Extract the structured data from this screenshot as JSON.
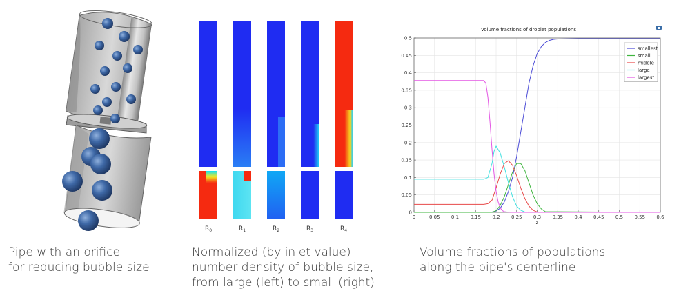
{
  "captions": {
    "pipe": [
      "Pipe with an orifice",
      "for reducing bubble size"
    ],
    "contour": [
      "Normalized (by inlet value)",
      "number density of bubble size,",
      "from large (left) to small (right)"
    ],
    "chart": [
      "Volume fractions of populations",
      "along the pipe's centerline"
    ]
  },
  "contour_labels": [
    {
      "base": "R",
      "sub": "0"
    },
    {
      "base": "R",
      "sub": "1"
    },
    {
      "base": "R",
      "sub": "2"
    },
    {
      "base": "R",
      "sub": "3"
    },
    {
      "base": "R",
      "sub": "4"
    }
  ],
  "colors": {
    "contour_blue": "#1f2cf2",
    "contour_red": "#f52a10",
    "contour_cyan": "#3fd8f0",
    "pipe_gray": "#b8b8b8",
    "bubble_blue": "#3e68a6"
  },
  "chart_data": {
    "type": "line",
    "title": "Volume fractions of droplet populations",
    "xlabel": "z",
    "ylabel": "",
    "xlim": [
      0,
      0.6
    ],
    "ylim": [
      0,
      0.5
    ],
    "xticks": [
      "0",
      "0.05",
      "0.1",
      "0.15",
      "0.2",
      "0.25",
      "0.3",
      "0.35",
      "0.4",
      "0.45",
      "0.5",
      "0.55",
      "0.6"
    ],
    "yticks": [
      "0",
      "0.05",
      "0.1",
      "0.15",
      "0.2",
      "0.25",
      "0.3",
      "0.35",
      "0.4",
      "0.45",
      "0.5"
    ],
    "grid": true,
    "legend_position": "top-right",
    "series": [
      {
        "name": "smallest",
        "color": "#4b4bd6",
        "x": [
          0,
          0.18,
          0.19,
          0.2,
          0.21,
          0.22,
          0.23,
          0.24,
          0.25,
          0.26,
          0.27,
          0.28,
          0.29,
          0.3,
          0.31,
          0.32,
          0.33,
          0.34,
          0.35,
          0.4,
          0.6
        ],
        "y": [
          0,
          0,
          0.001,
          0.004,
          0.012,
          0.03,
          0.06,
          0.1,
          0.16,
          0.23,
          0.3,
          0.37,
          0.42,
          0.455,
          0.475,
          0.487,
          0.493,
          0.496,
          0.497,
          0.498,
          0.498
        ]
      },
      {
        "name": "small",
        "color": "#3fb53f",
        "x": [
          0,
          0.19,
          0.2,
          0.21,
          0.22,
          0.23,
          0.24,
          0.25,
          0.26,
          0.27,
          0.28,
          0.29,
          0.3,
          0.31,
          0.32,
          0.6
        ],
        "y": [
          0,
          0,
          0.005,
          0.02,
          0.045,
          0.08,
          0.115,
          0.14,
          0.14,
          0.12,
          0.085,
          0.05,
          0.025,
          0.01,
          0.002,
          0
        ]
      },
      {
        "name": "middle",
        "color": "#e84a4a",
        "x": [
          0,
          0.17,
          0.18,
          0.19,
          0.2,
          0.21,
          0.22,
          0.23,
          0.24,
          0.25,
          0.26,
          0.27,
          0.28,
          0.29,
          0.3,
          0.6
        ],
        "y": [
          0.023,
          0.023,
          0.025,
          0.035,
          0.07,
          0.11,
          0.14,
          0.148,
          0.135,
          0.105,
          0.07,
          0.04,
          0.018,
          0.006,
          0.001,
          0
        ]
      },
      {
        "name": "large",
        "color": "#3fe0e0",
        "x": [
          0,
          0.17,
          0.18,
          0.19,
          0.195,
          0.2,
          0.21,
          0.22,
          0.23,
          0.24,
          0.25,
          0.26,
          0.27,
          0.28,
          0.6
        ],
        "y": [
          0.095,
          0.095,
          0.1,
          0.14,
          0.175,
          0.19,
          0.17,
          0.13,
          0.085,
          0.045,
          0.018,
          0.006,
          0.001,
          0,
          0
        ]
      },
      {
        "name": "largest",
        "color": "#e356e3",
        "x": [
          0,
          0.17,
          0.175,
          0.18,
          0.185,
          0.19,
          0.195,
          0.2,
          0.205,
          0.21,
          0.215,
          0.22,
          0.23,
          0.24,
          0.6
        ],
        "y": [
          0.378,
          0.378,
          0.37,
          0.33,
          0.26,
          0.18,
          0.11,
          0.06,
          0.03,
          0.013,
          0.005,
          0.002,
          0.0005,
          0,
          0
        ]
      }
    ]
  }
}
